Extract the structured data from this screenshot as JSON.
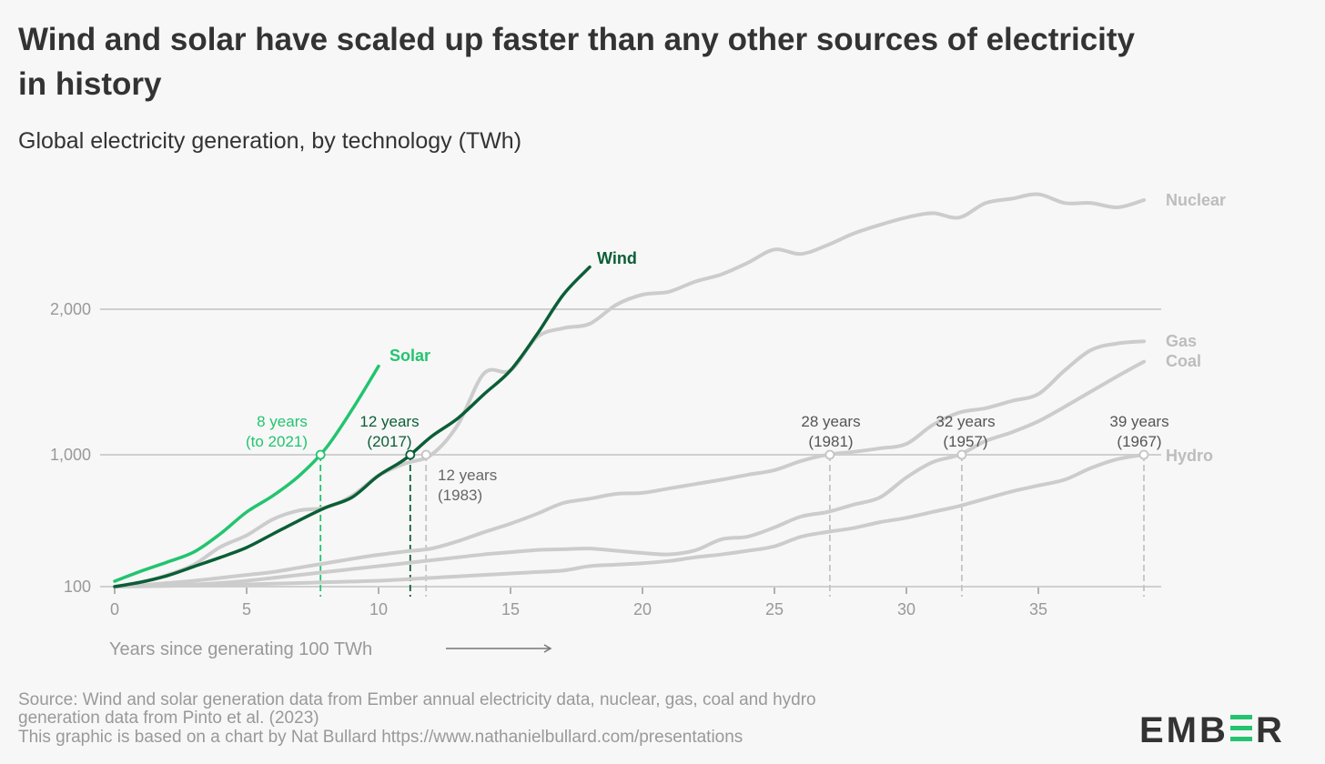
{
  "title_line1": "Wind and solar have scaled up faster than any other sources of electricity",
  "title_line2": "in history",
  "subtitle": "Global electricity generation, by technology (TWh)",
  "source_line1": "Source: Wind and solar generation data from Ember annual electricity data, nuclear, gas, coal and hydro",
  "source_line2": "generation data from Pinto et al. (2023)",
  "source_line3": "This graphic is based on a chart by Nat Bullard https://www.nathanielbullard.com/presentations",
  "logo": "EMBER",
  "colors": {
    "solar": "#23c46f",
    "wind": "#0b5e36",
    "other": "#cccccc",
    "other_label": "#bdbdbd",
    "grid": "#cfcfcf",
    "text": "#333333"
  },
  "chart_data": {
    "type": "line",
    "title": "Global electricity generation, by technology (TWh)",
    "xlabel": "Years since generating 100 TWh",
    "ylabel": "TWh",
    "xlim": [
      0,
      39
    ],
    "ylim": [
      100,
      2800
    ],
    "x_ticks": [
      0,
      5,
      10,
      15,
      20,
      25,
      30,
      35
    ],
    "y_ticks": [
      {
        "value": 100,
        "label": "100"
      },
      {
        "value": 1000,
        "label": "1,000"
      },
      {
        "value": 2000,
        "label": "2,000"
      }
    ],
    "grid": true,
    "series": [
      {
        "name": "Nuclear",
        "color": "#cccccc",
        "values": [
          100,
          130,
          180,
          250,
          370,
          450,
          560,
          620,
          640,
          721,
          858,
          940,
          1000,
          1205,
          1560,
          1580,
          1808,
          1870,
          1900,
          2030,
          2100,
          2120,
          2190,
          2240,
          2320,
          2410,
          2380,
          2440,
          2520,
          2580,
          2630,
          2660,
          2630,
          2730,
          2760,
          2790,
          2730,
          2730,
          2700,
          2750
        ]
      },
      {
        "name": "Gas",
        "color": "#cccccc",
        "values": [
          100,
          110,
          125,
          140,
          160,
          180,
          200,
          230,
          260,
          290,
          317,
          340,
          360,
          410,
          472,
          530,
          597,
          671,
          700,
          733,
          740,
          770,
          800,
          830,
          864,
          895,
          957,
          1000,
          1020,
          1044,
          1075,
          1205,
          1290,
          1320,
          1370,
          1417,
          1580,
          1720,
          1765,
          1780
        ]
      },
      {
        "name": "Coal",
        "color": "#cccccc",
        "values": [
          100,
          105,
          110,
          115,
          125,
          140,
          160,
          180,
          200,
          220,
          240,
          260,
          280,
          300,
          320,
          335,
          350,
          355,
          360,
          345,
          330,
          320,
          348,
          423,
          442,
          504,
          578,
          609,
          660,
          709,
          845,
          950,
          1000,
          1094,
          1155,
          1230,
          1330,
          1435,
          1540,
          1640
        ]
      },
      {
        "name": "Hydro",
        "color": "#cccccc",
        "values": [
          100,
          102,
          105,
          108,
          112,
          115,
          120,
          125,
          130,
          135,
          140,
          150,
          160,
          170,
          180,
          190,
          200,
          210,
          240,
          250,
          260,
          275,
          300,
          320,
          345,
          375,
          440,
          473,
          500,
          540,
          570,
          610,
          650,
          700,
          750,
          790,
          830,
          910,
          970,
          1000
        ]
      },
      {
        "name": "Solar",
        "color": "#23c46f",
        "values": [
          137,
          206,
          268,
          336,
          460,
          609,
          721,
          858,
          1044,
          1311,
          1609
        ]
      },
      {
        "name": "Wind",
        "color": "#0b5e36",
        "values": [
          100,
          131,
          175,
          237,
          299,
          367,
          460,
          553,
          640,
          710,
          858,
          970,
          1125,
          1250,
          1417,
          1580,
          1827,
          2100,
          2290
        ]
      }
    ],
    "annotations": [
      {
        "series": "Solar",
        "year": 7.8,
        "value": 1000,
        "line1": "8 years",
        "line2": "(to 2021)"
      },
      {
        "series": "Wind",
        "year": 11.2,
        "value": 1000,
        "line1": "12 years",
        "line2": "(2017)"
      },
      {
        "series": "Nuclear",
        "year": 11.8,
        "value": 1000,
        "line1": "12 years",
        "line2": "(1983)"
      },
      {
        "series": "Gas",
        "year": 27.1,
        "value": 1000,
        "line1": "28 years",
        "line2": "(1981)"
      },
      {
        "series": "Coal",
        "year": 32.1,
        "value": 1000,
        "line1": "32 years",
        "line2": "(1957)"
      },
      {
        "series": "Hydro",
        "year": 39,
        "value": 1000,
        "line1": "39 years",
        "line2": "(1967)"
      }
    ]
  }
}
